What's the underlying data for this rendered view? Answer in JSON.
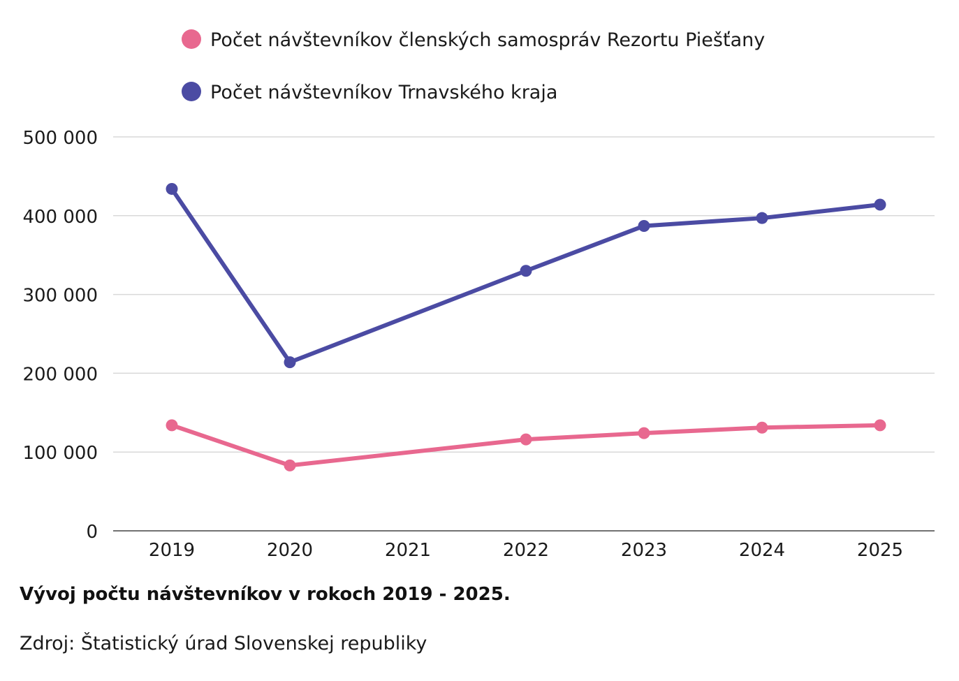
{
  "chart_data": {
    "type": "line",
    "title": "Vývoj počtu návštevníkov v rokoch 2019 - 2025.",
    "source": "Zdroj: Štatistický úrad Slovenskej republiky",
    "xlabel": "",
    "ylabel": "",
    "x": [
      "2019",
      "2020",
      "2021",
      "2022",
      "2023",
      "2024",
      "2025"
    ],
    "ylim": [
      0,
      500000
    ],
    "yticks": [
      0,
      100000,
      200000,
      300000,
      400000,
      500000
    ],
    "ytick_labels": [
      "0",
      "100 000",
      "200 000",
      "300 000",
      "400 000",
      "500 000"
    ],
    "grid": true,
    "legend_position": "top-left",
    "series": [
      {
        "name": "Počet návštevníkov členských samospráv Rezortu Piešťany",
        "color": "#e8688f",
        "points": [
          {
            "x": "2019",
            "y": 134000
          },
          {
            "x": "2020",
            "y": 83000
          },
          {
            "x": "2022",
            "y": 116000
          },
          {
            "x": "2023",
            "y": 124000
          },
          {
            "x": "2024",
            "y": 131000
          },
          {
            "x": "2025",
            "y": 134000
          }
        ]
      },
      {
        "name": "Počet návštevníkov Trnavského kraja",
        "color": "#4b4ba3",
        "points": [
          {
            "x": "2019",
            "y": 434000
          },
          {
            "x": "2020",
            "y": 214000
          },
          {
            "x": "2022",
            "y": 330000
          },
          {
            "x": "2023",
            "y": 387000
          },
          {
            "x": "2024",
            "y": 397000
          },
          {
            "x": "2025",
            "y": 414000
          }
        ]
      }
    ]
  },
  "colors": {
    "grid": "#d9d9d9",
    "axis": "#444444",
    "text": "#1a1a1a"
  }
}
